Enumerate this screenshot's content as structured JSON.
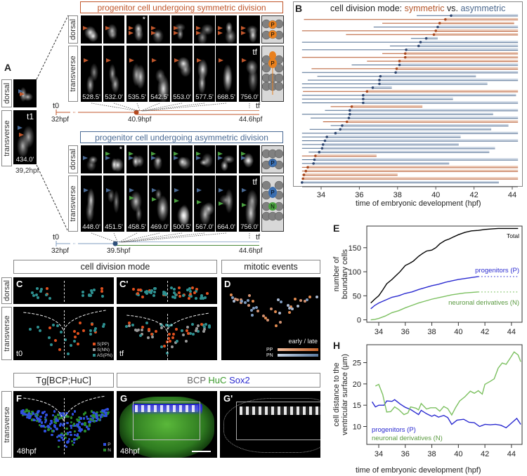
{
  "row_labels": {
    "dorsal": "dorsal",
    "transverse": "transverse"
  },
  "panel_a": {
    "label": "A",
    "t1": {
      "marker": "t1",
      "time": "434.0'",
      "hpf": "39,2hpf"
    },
    "symmetric": {
      "title": "progenitor cell undergoing symmetric division",
      "color": "#c0562b",
      "times": [
        "528.5'",
        "532.0'",
        "535.5'",
        "542.5'",
        "553.0'",
        "577.5'",
        "668.5'",
        "756.0'"
      ],
      "asterisk": "*",
      "tf": "tf",
      "schematic_dorsal": [
        "P",
        "P"
      ],
      "schematic_transverse": "P",
      "timeline": {
        "t0": "t0",
        "tf": "tf",
        "start": "32hpf",
        "event": "40.9hpf",
        "end": "44.6hpf"
      }
    },
    "asymmetric": {
      "title": "progenitor cell undergoing asymmetric division",
      "color": "#4a6a94",
      "times": [
        "448.0'",
        "451.5'",
        "458.5'",
        "469.0'",
        "500.5'",
        "567.0'",
        "664.0'",
        "756.0'"
      ],
      "asterisk": "*",
      "tf": "tf",
      "schematic_dorsal": [
        "P"
      ],
      "schematic_transverse": [
        "P",
        "N"
      ],
      "timeline": {
        "t0": "t0",
        "tf": "tf",
        "start": "32hpf",
        "event": "39.5hpf",
        "end": "44.6hpf"
      }
    }
  },
  "section_headers": {
    "cell_division_mode": "cell division mode",
    "mitotic_events": "mitotic events",
    "tg": "Tg[BCP;HuC]",
    "stain": {
      "bcp": "BCP",
      "huc": "HuC",
      "sox2": "Sox2"
    }
  },
  "panel_c": {
    "label": "C",
    "time": "t0",
    "legend": [
      {
        "label": "S(PP)",
        "color": "#e0501e"
      },
      {
        "label": "S(NN)",
        "color": "#999999"
      },
      {
        "label": "AS(PN)",
        "color": "#2e9090"
      }
    ]
  },
  "panel_c2": {
    "label": "C'",
    "time": "tf"
  },
  "panel_d": {
    "label": "D",
    "legend_title": "early / late",
    "legend": [
      {
        "label": "PP",
        "color": "#e08a50"
      },
      {
        "label": "PN",
        "color": "#7f9cc0"
      }
    ]
  },
  "panel_f": {
    "label": "F",
    "time": "48hpf",
    "legend": [
      {
        "label": "P",
        "color": "#3050e0"
      },
      {
        "label": "N",
        "color": "#2a8a2a"
      }
    ]
  },
  "panel_g": {
    "label": "G",
    "time": "48hpf"
  },
  "panel_g2": {
    "label": "G'"
  },
  "colors": {
    "symmetric": "#b5562a",
    "asymmetric": "#4d6a8f",
    "progenitors": "#2a2ad0",
    "neuronal": "#7cc060",
    "total": "#000000"
  },
  "chart_data": [
    {
      "panel": "B",
      "type": "line",
      "title": {
        "prefix": "cell division mode: ",
        "symmetric": "symmetric",
        "vs": " vs. ",
        "asymmetric": "asymmetric"
      },
      "xlabel": "time of embryonic development (hpf)",
      "xticks": [
        34,
        36,
        38,
        40,
        42,
        44
      ],
      "xlim": [
        32.9,
        44.5
      ],
      "rows": [
        {
          "mode": "asymmetric",
          "start": 39.0,
          "division": 40.8,
          "end": 44.3
        },
        {
          "mode": "symmetric",
          "start": 33.1,
          "division": 40.5,
          "end": 44.3
        },
        {
          "mode": "symmetric",
          "start": 37.2,
          "division": 40.2,
          "end": 44.1
        },
        {
          "mode": "asymmetric",
          "start": 36.75,
          "division": 40.1,
          "end": 44.3
        },
        {
          "mode": "symmetric",
          "start": 33.0,
          "division": 40.0,
          "end": 44.3
        },
        {
          "mode": "symmetric",
          "start": 35.3,
          "division": 39.9,
          "end": 44.3
        },
        {
          "mode": "asymmetric",
          "start": 38.7,
          "division": 39.5,
          "end": 40.1
        },
        {
          "mode": "asymmetric",
          "start": 33.0,
          "division": 39.2,
          "end": 44.3
        },
        {
          "mode": "asymmetric",
          "start": 37.6,
          "division": 39.1,
          "end": 44.3
        },
        {
          "mode": "asymmetric",
          "start": 33.0,
          "division": 38.45,
          "end": 44.3
        },
        {
          "mode": "symmetric",
          "start": 37.2,
          "division": 38.4,
          "end": 44.3
        },
        {
          "mode": "symmetric",
          "start": 33.0,
          "division": 38.4,
          "end": 44.3
        },
        {
          "mode": "symmetric",
          "start": 36.4,
          "division": 38.1,
          "end": 44.3
        },
        {
          "mode": "asymmetric",
          "start": 35.6,
          "division": 38.1,
          "end": 44.3
        },
        {
          "mode": "symmetric",
          "start": 33.5,
          "division": 37.95,
          "end": 44.3
        },
        {
          "mode": "asymmetric",
          "start": 33.0,
          "division": 37.9,
          "end": 44.3
        },
        {
          "mode": "asymmetric",
          "start": 33.8,
          "division": 37.1,
          "end": 42.1
        },
        {
          "mode": "asymmetric",
          "start": 33.3,
          "division": 37.05,
          "end": 44.3
        },
        {
          "mode": "asymmetric",
          "start": 33.0,
          "division": 37.05,
          "end": 42.7
        },
        {
          "mode": "asymmetric",
          "start": 33.0,
          "division": 36.7,
          "end": 37.7
        },
        {
          "mode": "symmetric",
          "start": 33.05,
          "division": 36.4,
          "end": 44.3
        },
        {
          "mode": "asymmetric",
          "start": 33.0,
          "division": 36.2,
          "end": 44.2
        },
        {
          "mode": "asymmetric",
          "start": 33.0,
          "division": 36.2,
          "end": 40.9
        },
        {
          "mode": "asymmetric",
          "start": 33.0,
          "division": 36.2,
          "end": 44.3
        },
        {
          "mode": "symmetric",
          "start": 34.5,
          "division": 35.6,
          "end": 39.3
        },
        {
          "mode": "asymmetric",
          "start": 34.2,
          "division": 35.5,
          "end": 44.3
        },
        {
          "mode": "asymmetric",
          "start": 33.0,
          "division": 35.5,
          "end": 43.0
        },
        {
          "mode": "asymmetric",
          "start": 33.45,
          "division": 35.45,
          "end": 44.3
        },
        {
          "mode": "symmetric",
          "start": 34.1,
          "division": 35.35,
          "end": 44.3
        },
        {
          "mode": "asymmetric",
          "start": 34.5,
          "division": 35.1,
          "end": 43.8
        },
        {
          "mode": "asymmetric",
          "start": 33.4,
          "division": 35.0,
          "end": 42.9
        },
        {
          "mode": "asymmetric",
          "start": 33.0,
          "division": 34.75,
          "end": 44.3
        },
        {
          "mode": "asymmetric",
          "start": 33.0,
          "division": 34.3,
          "end": 41.3
        },
        {
          "mode": "asymmetric",
          "start": 33.0,
          "division": 34.2,
          "end": 44.3
        },
        {
          "mode": "asymmetric",
          "start": 33.0,
          "division": 34.1,
          "end": 41.2
        },
        {
          "mode": "asymmetric",
          "start": 33.0,
          "division": 34.05,
          "end": 43.1
        },
        {
          "mode": "asymmetric",
          "start": 33.35,
          "division": 33.9,
          "end": 42.8
        },
        {
          "mode": "symmetric",
          "start": 33.0,
          "division": 33.7,
          "end": 36.9
        },
        {
          "mode": "asymmetric",
          "start": 33.0,
          "division": 33.65,
          "end": 44.3
        },
        {
          "mode": "asymmetric",
          "start": 33.0,
          "division": 33.6,
          "end": 40.7
        },
        {
          "mode": "symmetric",
          "start": 33.0,
          "division": 33.3,
          "end": 44.3
        },
        {
          "mode": "symmetric",
          "start": 33.0,
          "division": 33.2,
          "end": 44.3
        },
        {
          "mode": "symmetric",
          "start": 33.0,
          "division": 33.1,
          "end": 38.0
        },
        {
          "mode": "symmetric",
          "start": 33.0,
          "division": 33.05,
          "end": 44.3
        },
        {
          "mode": "asymmetric",
          "start": 33.0,
          "division": 33.0,
          "end": 43.3
        }
      ]
    },
    {
      "panel": "E",
      "type": "line",
      "ylabel": [
        "number of",
        "boundary cells"
      ],
      "xticks": [
        34,
        36,
        38,
        40,
        42,
        44
      ],
      "yticks": [
        0,
        50,
        100,
        150
      ],
      "xlim": [
        33.1,
        44.8
      ],
      "ylim": [
        -5,
        195
      ],
      "series": [
        {
          "name": "Total",
          "x": [
            33.4,
            33.7,
            34,
            34.3,
            34.6,
            35,
            35.3,
            35.6,
            36,
            36.3,
            36.6,
            37,
            37.3,
            37.6,
            38,
            38.3,
            38.6,
            39,
            39.3,
            39.6,
            40,
            40.5,
            41,
            41.5,
            42,
            42.5,
            43,
            43.5,
            44,
            44.5
          ],
          "y": [
            35,
            43,
            50,
            62,
            75,
            84,
            92,
            100,
            113,
            117,
            122,
            132,
            138,
            143,
            145,
            150,
            158,
            165,
            168,
            172,
            177,
            182,
            185,
            186,
            188,
            189,
            190,
            190,
            190,
            190
          ]
        },
        {
          "name": "progenitors (P)",
          "x": [
            33.4,
            33.7,
            34,
            34.5,
            35,
            35.5,
            36,
            36.5,
            37,
            37.5,
            38,
            38.5,
            39,
            39.5,
            40,
            40.5,
            41,
            41.5
          ],
          "y": [
            23,
            30,
            35,
            41,
            47,
            50,
            55,
            58,
            63,
            67,
            71,
            74,
            78,
            81,
            84,
            86,
            88,
            90
          ],
          "extension": {
            "x": [
              41.5,
              44.5
            ],
            "y": [
              90,
              90
            ]
          }
        },
        {
          "name": "neuronal derivatives (N)",
          "x": [
            33.4,
            33.7,
            34,
            34.5,
            35,
            35.5,
            36,
            36.5,
            37,
            37.5,
            38,
            38.5,
            39,
            39.5,
            40,
            40.5,
            41,
            41.5
          ],
          "y": [
            0,
            1,
            3,
            8,
            15,
            19,
            25,
            30,
            35,
            39,
            43,
            46,
            49,
            52,
            54,
            56,
            57,
            58
          ],
          "extension": {
            "x": [
              41.5,
              44.5
            ],
            "y": [
              58,
              58
            ]
          }
        }
      ]
    },
    {
      "panel": "H",
      "type": "line",
      "xlabel": "time of embryonic development (hpf)",
      "ylabel": [
        "cell distance to the",
        "ventricular surface (µm)"
      ],
      "xticks": [
        34,
        36,
        38,
        40,
        42,
        44
      ],
      "yticks": [
        10,
        15,
        20,
        25
      ],
      "xlim": [
        33.1,
        44.8
      ],
      "ylim": [
        5.8,
        29.2
      ],
      "series": [
        {
          "name": "progenitors (P)",
          "x": [
            33.5,
            33.75,
            34,
            34.4,
            34.6,
            35,
            35.2,
            35.6,
            36,
            36.4,
            36.8,
            37,
            37.2,
            37.6,
            38,
            38.2,
            38.5,
            38.9,
            39.2,
            39.5,
            39.9,
            40.4,
            40.8,
            41.2,
            41.6,
            42,
            42.4,
            42.8,
            43.2,
            43.6,
            44,
            44.4,
            44.7
          ],
          "y": [
            15.8,
            14.6,
            15,
            15,
            16,
            15.9,
            16.3,
            15.3,
            14.5,
            14,
            13.2,
            12.8,
            13.8,
            13,
            12.4,
            12.7,
            12.2,
            12.6,
            12.1,
            10.5,
            11.5,
            11.7,
            11,
            10.9,
            10,
            10.5,
            10.4,
            10.5,
            10.3,
            9.7,
            10.8,
            11.9,
            10.5
          ]
        },
        {
          "name": "neuronal derivatives (N)",
          "x": [
            33.75,
            34,
            34.3,
            34.6,
            34.9,
            35.2,
            35.5,
            35.9,
            36.2,
            36.4,
            36.8,
            37,
            37.2,
            37.6,
            37.9,
            38.3,
            38.6,
            38.9,
            39.2,
            39.5,
            39.8,
            40.1,
            40.5,
            40.9,
            41.2,
            41.5,
            41.8,
            42,
            42.4,
            42.7,
            43,
            43.3,
            43.6,
            44,
            44.2,
            44.5,
            44.7
          ],
          "y": [
            19.5,
            19.9,
            17.5,
            13.4,
            13.5,
            14.6,
            14,
            12.8,
            13.2,
            14.6,
            14.3,
            13.9,
            15.4,
            14.1,
            14.4,
            14.4,
            13.6,
            14.7,
            14.2,
            12.7,
            14.5,
            16,
            17,
            18.3,
            17.8,
            18.4,
            17.6,
            19.9,
            20.6,
            21.2,
            23.7,
            24.9,
            24.6,
            26.5,
            27.5,
            26.8,
            25.2
          ]
        }
      ]
    }
  ]
}
